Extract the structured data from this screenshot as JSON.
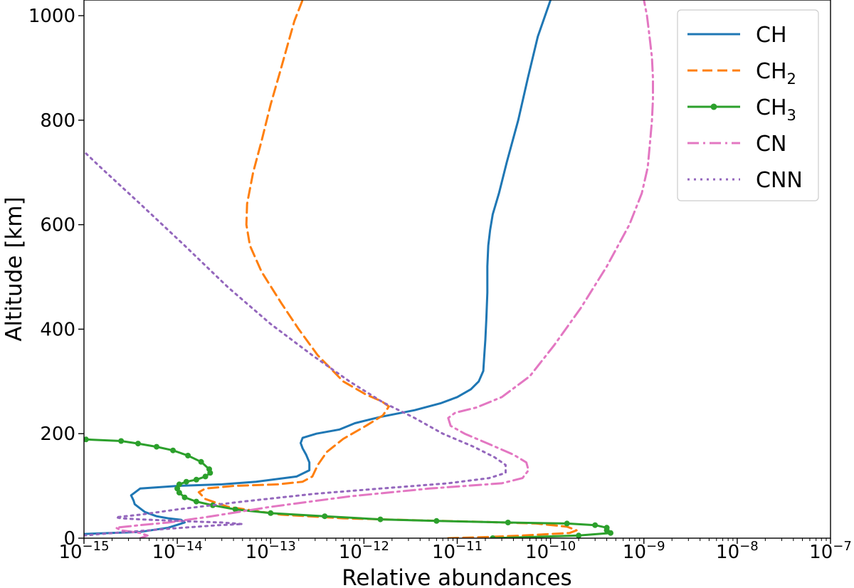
{
  "chart_data": {
    "type": "line",
    "title": "",
    "xlabel": "Relative abundances",
    "ylabel": "Altitude [km]",
    "xscale": "log",
    "xlim": [
      1e-15,
      1e-07
    ],
    "ylim": [
      0,
      1030
    ],
    "x_tick_labels": [
      {
        "mantissa": "10",
        "exp": "−15"
      },
      {
        "mantissa": "10",
        "exp": "−14"
      },
      {
        "mantissa": "10",
        "exp": "−13"
      },
      {
        "mantissa": "10",
        "exp": "−12"
      },
      {
        "mantissa": "10",
        "exp": "−11"
      },
      {
        "mantissa": "10",
        "exp": "−10"
      },
      {
        "mantissa": "10",
        "exp": "−9"
      },
      {
        "mantissa": "10",
        "exp": "−8"
      },
      {
        "mantissa": "10",
        "exp": "−7"
      }
    ],
    "y_ticks": [
      0,
      200,
      400,
      600,
      800,
      1000
    ],
    "y_tick_labels": [
      "0",
      "200",
      "400",
      "600",
      "800",
      "1000"
    ],
    "grid": false,
    "legend_position": "top-right",
    "series": [
      {
        "name": "CH",
        "name_base": "CH",
        "name_sub": "",
        "color": "#1f77b4",
        "style": "solid",
        "x": [
          1e-15,
          4e-15,
          8e-15,
          1.2e-14,
          1.1e-14,
          8e-15,
          6e-15,
          4.5e-15,
          4e-15,
          3.5e-15,
          3.4e-15,
          3.2e-15,
          4e-15,
          1e-14,
          3e-14,
          7e-14,
          1.9e-13,
          2.6e-13,
          2.6e-13,
          2.4e-13,
          2.2e-13,
          2.1e-13,
          2.2e-13,
          3.1e-13,
          5.5e-13,
          8e-13,
          1.5e-12,
          3.5e-12,
          6.6e-12,
          1e-11,
          1.4e-11,
          1.7e-11,
          1.9e-11,
          1.95e-11,
          2e-11,
          2.05e-11,
          2.1e-11,
          2.1e-11,
          2.15e-11,
          2.25e-11,
          2.4e-11,
          2.8e-11,
          3.4e-11,
          4.5e-11,
          5.7e-11,
          7.3e-11,
          1e-10
        ],
        "y": [
          8,
          12,
          20,
          30,
          35,
          38,
          42,
          50,
          57,
          65,
          72,
          82,
          95,
          100,
          103,
          108,
          118,
          130,
          145,
          160,
          172,
          182,
          192,
          200,
          208,
          220,
          232,
          245,
          258,
          270,
          285,
          300,
          320,
          350,
          380,
          420,
          470,
          520,
          560,
          590,
          620,
          660,
          720,
          800,
          880,
          960,
          1030
        ]
      },
      {
        "name": "CH2",
        "name_base": "CH",
        "name_sub": "2",
        "color": "#ff7f0e",
        "style": "dashed",
        "x": [
          8e-12,
          2e-11,
          5e-11,
          1e-10,
          1.6e-10,
          1.9e-10,
          1.5e-10,
          7e-11,
          2e-11,
          4e-12,
          6e-13,
          1.3e-13,
          3.5e-14,
          2e-14,
          1.7e-14,
          2e-14,
          4e-14,
          1.2e-13,
          2.2e-13,
          2.8e-13,
          3.2e-13,
          4e-13,
          6e-13,
          1.05e-12,
          1.6e-12,
          1.85e-12,
          1.55e-12,
          1.05e-12,
          6e-13,
          3.2e-13,
          2e-13,
          1.3e-13,
          8e-14,
          6e-14,
          5.5e-14,
          5.6e-14,
          6.5e-14,
          8e-14,
          1e-13,
          1.25e-13,
          1.5e-13,
          1.8e-13,
          2.2e-13
        ],
        "y": [
          0,
          2,
          5,
          8,
          10,
          15,
          22,
          28,
          31,
          34,
          38,
          45,
          60,
          75,
          88,
          95,
          100,
          103,
          108,
          118,
          140,
          165,
          190,
          215,
          235,
          252,
          262,
          275,
          300,
          350,
          400,
          450,
          510,
          560,
          600,
          640,
          700,
          760,
          830,
          890,
          940,
          990,
          1030
        ]
      },
      {
        "name": "CH3",
        "name_base": "CH",
        "name_sub": "3",
        "color": "#2ca02c",
        "style": "solid-dots",
        "x": [
          2.4e-11,
          2e-10,
          4.4e-10,
          4e-10,
          4e-10,
          3e-10,
          1.5e-10,
          3.5e-11,
          6e-12,
          1.5e-12,
          3.8e-13,
          1e-13,
          4.2e-14,
          2.4e-14,
          1.6e-14,
          1.2e-14,
          1.05e-14,
          1e-14,
          1.05e-14,
          1.25e-14,
          1.6e-14,
          2e-14,
          2.25e-14,
          2.2e-14,
          1.8e-14,
          1.3e-14,
          9e-15,
          6e-15,
          3.8e-15,
          2.5e-15,
          1.05e-15
        ],
        "y": [
          0,
          5,
          10,
          15,
          20,
          25,
          28,
          30,
          33,
          36,
          42,
          48,
          55,
          63,
          70,
          78,
          87,
          95,
          103,
          108,
          112,
          118,
          125,
          132,
          146,
          158,
          168,
          175,
          181,
          186,
          189
        ]
      },
      {
        "name": "CN",
        "name_base": "CN",
        "name_sub": "",
        "color": "#e377c2",
        "style": "dashdot",
        "x": [
          4e-15,
          4.8e-15,
          4e-15,
          2.5e-15,
          2.2e-15,
          4e-15,
          8e-15,
          2e-14,
          1e-13,
          7e-13,
          5e-12,
          3e-11,
          5e-11,
          5.8e-11,
          5.5e-11,
          4e-11,
          2.2e-11,
          1.2e-11,
          8.5e-12,
          8e-12,
          9.5e-12,
          1.6e-11,
          3e-11,
          6e-11,
          1.1e-10,
          2.1e-10,
          4e-10,
          7e-10,
          9.5e-10,
          1.1e-09,
          1.18e-09,
          1.22e-09,
          1.25e-09,
          1.25e-09,
          1.22e-09,
          1.15e-09,
          1.08e-09,
          1e-09
        ],
        "y": [
          0,
          5,
          10,
          15,
          20,
          25,
          30,
          40,
          60,
          80,
          95,
          105,
          115,
          130,
          145,
          160,
          180,
          200,
          215,
          230,
          240,
          250,
          270,
          310,
          370,
          440,
          520,
          600,
          660,
          710,
          770,
          800,
          840,
          880,
          920,
          960,
          1000,
          1030
        ]
      },
      {
        "name": "CNN",
        "name_base": "CNN",
        "name_sub": "",
        "color": "#9467bd",
        "style": "dotted",
        "x": [
          1e-15,
          1.5e-15,
          3e-15,
          8e-15,
          2.8e-14,
          5e-14,
          3e-14,
          1e-14,
          4e-15,
          2.5e-15,
          2.2e-15,
          4e-15,
          1e-14,
          5e-14,
          3e-13,
          1.5e-12,
          8e-12,
          2.2e-11,
          3.3e-11,
          3.3e-11,
          2.5e-11,
          1.5e-11,
          7e-12,
          3.5e-12,
          1.6e-12,
          7e-13,
          2.8e-13,
          1e-13,
          3.5e-14,
          1.2e-14,
          4e-15,
          1.5e-15,
          1e-15
        ],
        "y": [
          5,
          8,
          12,
          18,
          25,
          27,
          30,
          33,
          36,
          38,
          40,
          45,
          55,
          70,
          85,
          95,
          105,
          115,
          125,
          140,
          155,
          175,
          200,
          230,
          260,
          300,
          350,
          410,
          480,
          560,
          640,
          710,
          740
        ]
      }
    ]
  }
}
